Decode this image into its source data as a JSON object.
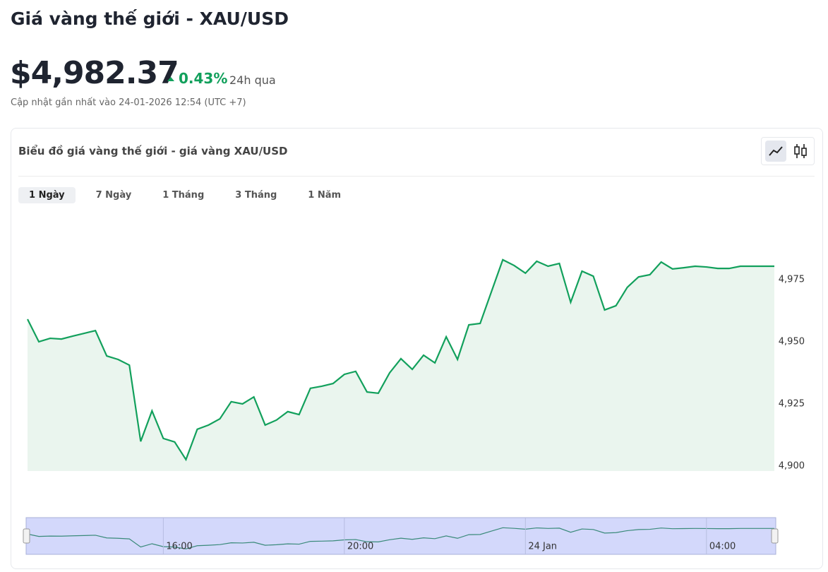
{
  "header": {
    "title": "Giá vàng thế giới - XAU/USD",
    "price": "$4,982.37",
    "change": "0.43%",
    "period": "24h qua",
    "updated": "Cập nhật gần nhất vào 24-01-2026 12:54 (UTC +7)"
  },
  "card": {
    "title": "Biểu đồ giá vàng thế giới - giá vàng XAU/USD",
    "tabs": [
      "1 Ngày",
      "7 Ngày",
      "1 Tháng",
      "3 Tháng",
      "1 Năm"
    ]
  },
  "chart_data": {
    "type": "line",
    "categories": [
      null,
      null,
      null,
      null,
      null,
      null,
      null,
      null,
      null,
      null,
      null,
      null,
      "16:00",
      null,
      null,
      null,
      null,
      null,
      null,
      null,
      null,
      null,
      null,
      null,
      null,
      null,
      null,
      null,
      "20:00",
      null,
      null,
      null,
      null,
      null,
      null,
      null,
      null,
      null,
      null,
      null,
      null,
      null,
      null,
      null,
      "24 Jan",
      null,
      null,
      null,
      null,
      null,
      null,
      null,
      null,
      null,
      null,
      null,
      null,
      null,
      null,
      null,
      "04:00",
      null,
      null,
      null,
      null,
      null,
      null
    ],
    "series": [
      {
        "name": "XAU/USD",
        "color": "#12a05c",
        "values": [
          4959.1,
          4950,
          4951.4,
          4951.1,
          4952.3,
          4953.4,
          4954.5,
          4944.3,
          4942.9,
          4940.6,
          4909.9,
          4922.2,
          4911.1,
          4909.7,
          4902.6,
          4914.8,
          4916.5,
          4919,
          4925.9,
          4925,
          4927.8,
          4916.5,
          4918.5,
          4921.9,
          4920.7,
          4931.3,
          4932.1,
          4933.2,
          4936.9,
          4938.1,
          4929.8,
          4929.3,
          4937.5,
          4943.2,
          4938.9,
          4944.6,
          4941.5,
          4952,
          4942.9,
          4956.8,
          4957.4,
          4970.2,
          4983,
          4980.7,
          4977.6,
          4982.4,
          4980.4,
          4981.5,
          4965.9,
          4978.4,
          4976.4,
          4962.8,
          4964.5,
          4971.9,
          4976.1,
          4977,
          4982.1,
          4979.3,
          4979.8,
          4980.4,
          4980.1,
          4979.5,
          4979.5,
          4980.4,
          4980.4,
          4980.4,
          4980.4
        ]
      }
    ],
    "ylim": [
      4898,
      5000
    ],
    "yticks": [
      {
        "value": 4900,
        "label": "4,900"
      },
      {
        "value": 4925,
        "label": "4,925"
      },
      {
        "value": 4950,
        "label": "4,950"
      },
      {
        "value": 4975,
        "label": "4,975"
      }
    ]
  }
}
